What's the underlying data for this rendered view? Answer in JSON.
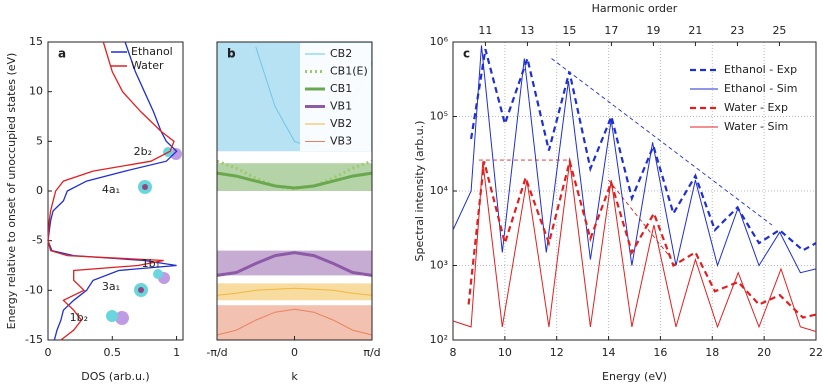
{
  "chart_data": [
    {
      "type": "line",
      "panel_label": "a",
      "orientation": "horizontal",
      "xlabel": "DOS (arb.u.)",
      "ylabel": "Energy relative to onset of unoccupied states (eV)",
      "xlim": [
        0,
        1.05
      ],
      "xticks": [
        0,
        0.5,
        1
      ],
      "ylim": [
        -15,
        15
      ],
      "yticks": [
        -15,
        -10,
        -5,
        0,
        5,
        10,
        15
      ],
      "legend": "upper right",
      "y": [
        15,
        12,
        10,
        8,
        6,
        5,
        4,
        3,
        2,
        1,
        0,
        -1,
        -2,
        -3,
        -5,
        -6,
        -6.5,
        -7,
        -7.5,
        -8,
        -9,
        -10,
        -11,
        -12,
        -13,
        -14,
        -15
      ],
      "series": [
        {
          "name": "Ethanol",
          "color": "#1f2fd0",
          "values": [
            0.6,
            0.68,
            0.75,
            0.82,
            0.88,
            0.92,
            1.0,
            0.92,
            0.6,
            0.3,
            0.15,
            0.12,
            0.04,
            0.02,
            0,
            0.03,
            0.2,
            0.75,
            1.0,
            0.55,
            0.35,
            0.3,
            0.2,
            0.12,
            0.1,
            0.07,
            0.05
          ]
        },
        {
          "name": "Water",
          "color": "#e02020",
          "values": [
            0.43,
            0.5,
            0.58,
            0.72,
            0.88,
            0.98,
            0.95,
            0.8,
            0.35,
            0.12,
            0.06,
            0.04,
            0.02,
            0.01,
            0,
            0.02,
            0.15,
            0.9,
            0.7,
            0.2,
            0.2,
            0.28,
            0.12,
            0.2,
            0.26,
            0.2,
            0.1
          ]
        }
      ],
      "annotations": [
        "2b₂",
        "4a₁",
        "1b₁",
        "3a₁",
        "1b₂"
      ]
    },
    {
      "type": "band",
      "panel_label": "b",
      "xlabel": "k",
      "xlim": [
        -1,
        1
      ],
      "xticks": [
        {
          "value": -1,
          "label": "-π/d"
        },
        0,
        {
          "value": 1,
          "label": "π/d"
        }
      ],
      "ylim": [
        -15,
        15
      ],
      "legend": "upper right",
      "x": [
        -1,
        -0.75,
        -0.5,
        -0.25,
        0,
        0.25,
        0.5,
        0.75,
        1
      ],
      "series": [
        {
          "name": "CB2",
          "color": "#6ec6ea",
          "range": [
            4,
            15
          ],
          "values": [
            null,
            null,
            14.5,
            8.5,
            5,
            4.3,
            5.8,
            9,
            13
          ]
        },
        {
          "name": "CB1(E)",
          "color": "#9cc96b",
          "linestyle": "dotted",
          "values": [
            3,
            2.3,
            1.3,
            0.5,
            0.2,
            0.5,
            1.3,
            2.3,
            3
          ]
        },
        {
          "name": "CB1",
          "color": "#6aa84f",
          "range": [
            0,
            2.8
          ],
          "values": [
            1.8,
            1.5,
            1.0,
            0.5,
            0.3,
            0.5,
            1.0,
            1.5,
            1.8
          ]
        },
        {
          "name": "VB1",
          "color": "#8e5aa8",
          "range": [
            -8.5,
            -6
          ],
          "values": [
            -8.5,
            -8.2,
            -7.3,
            -6.5,
            -6.2,
            -6.5,
            -7.3,
            -8.2,
            -8.5
          ]
        },
        {
          "name": "VB2",
          "color": "#f0b840",
          "range": [
            -11,
            -9.3
          ],
          "values": [
            -10.5,
            -10.3,
            -10,
            -9.9,
            -9.8,
            -9.9,
            -10,
            -10.3,
            -10.5
          ]
        },
        {
          "name": "VB3",
          "color": "#e8835f",
          "range": [
            -15,
            -11.5
          ],
          "values": [
            -14.5,
            -14,
            -13,
            -12.2,
            -11.9,
            -12.2,
            -13,
            -14,
            -14.5
          ]
        }
      ]
    },
    {
      "type": "line",
      "panel_label": "c",
      "xlabel": "Energy (eV)",
      "ylabel": "Spectral intensity (arb.u.)",
      "x2label": "Harmonic order",
      "xlim": [
        8,
        22
      ],
      "xticks": [
        8,
        10,
        12,
        14,
        16,
        18,
        20,
        22
      ],
      "x2ticks": [
        {
          "value": 9.25,
          "label": "11"
        },
        {
          "value": 10.87,
          "label": "13"
        },
        {
          "value": 12.49,
          "label": "15"
        },
        {
          "value": 14.11,
          "label": "17"
        },
        {
          "value": 15.73,
          "label": "19"
        },
        {
          "value": 17.35,
          "label": "21"
        },
        {
          "value": 18.97,
          "label": "23"
        },
        {
          "value": 20.59,
          "label": "25"
        }
      ],
      "ylim": [
        100,
        1000000
      ],
      "yscale": "log",
      "yticks": [
        {
          "value": 100,
          "label": "10²"
        },
        {
          "value": 1000,
          "label": "10³"
        },
        {
          "value": 10000,
          "label": "10⁴"
        },
        {
          "value": 100000,
          "label": "10⁵"
        },
        {
          "value": 1000000,
          "label": "10⁶"
        }
      ],
      "grid": true,
      "legend": "upper right",
      "series": [
        {
          "name": "Ethanol - Exp",
          "color": "#1f2fd0",
          "linestyle": "dashed",
          "x": [
            8.7,
            9.25,
            10.0,
            10.87,
            11.7,
            12.49,
            13.3,
            14.11,
            14.9,
            15.73,
            16.5,
            17.35,
            18.1,
            18.97,
            19.8,
            20.59,
            21.5,
            22
          ],
          "values": [
            50000,
            800000,
            80000,
            600000,
            35000,
            400000,
            20000,
            100000,
            8000,
            40000,
            5000,
            16000,
            3000,
            6000,
            2000,
            3000,
            1600,
            2000
          ]
        },
        {
          "name": "Ethanol - Sim",
          "color": "#1f2fd0",
          "x": [
            8,
            8.7,
            9.1,
            9.9,
            10.75,
            11.6,
            12.45,
            13.3,
            14.1,
            14.9,
            15.7,
            16.6,
            17.35,
            18.2,
            19.0,
            19.8,
            20.6,
            21.4,
            22
          ],
          "values": [
            3000,
            10000,
            900000,
            1500,
            600000,
            1500,
            300000,
            1200,
            90000,
            1000,
            45000,
            1000,
            14000,
            1000,
            6000,
            1000,
            2800,
            800,
            900
          ]
        },
        {
          "name": "Water - Exp",
          "color": "#e02020",
          "linestyle": "dashed",
          "x": [
            8.6,
            9.2,
            10.0,
            10.8,
            11.7,
            12.5,
            13.3,
            14.1,
            14.9,
            15.75,
            16.5,
            17.35,
            18.1,
            19.0,
            19.8,
            20.6,
            21.5,
            22
          ],
          "values": [
            300,
            25000,
            2000,
            15000,
            2000,
            25000,
            2300,
            13000,
            1500,
            5000,
            1000,
            1500,
            450,
            600,
            300,
            400,
            200,
            220
          ]
        },
        {
          "name": "Water - Sim",
          "color": "#e02020",
          "x": [
            8,
            8.7,
            9.15,
            9.9,
            10.85,
            11.7,
            12.5,
            13.3,
            14.1,
            14.9,
            15.75,
            16.6,
            17.35,
            18.2,
            19.0,
            19.8,
            20.65,
            21.4,
            22
          ],
          "values": [
            180,
            150,
            25000,
            150,
            14000,
            150,
            25000,
            150,
            14000,
            150,
            3500,
            150,
            1200,
            150,
            800,
            150,
            900,
            150,
            130
          ]
        }
      ],
      "guides": [
        {
          "color": "#1f2fd0",
          "linestyle": "dashed",
          "x": [
            11.8,
            20.3
          ],
          "values": [
            600000,
            3500
          ]
        },
        {
          "color": "#e02020",
          "linestyle": "dashed",
          "x": [
            9.0,
            12.5
          ],
          "values": [
            26000,
            26000
          ]
        },
        {
          "color": "#e02020",
          "linestyle": "dashed",
          "x": [
            14.0,
            16.3
          ],
          "values": [
            14000,
            1400
          ]
        }
      ]
    }
  ]
}
